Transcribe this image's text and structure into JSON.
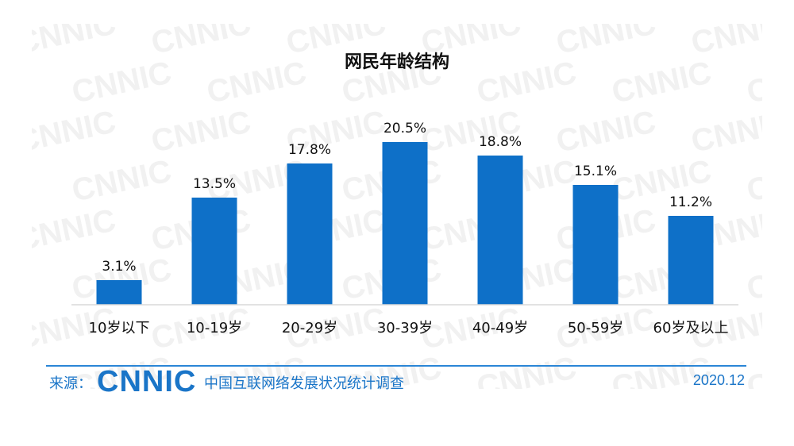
{
  "watermark_text": "CNNIC",
  "chart_data": {
    "type": "bar",
    "title": "网民年龄结构",
    "categories": [
      "10岁以下",
      "10-19岁",
      "20-29岁",
      "30-39岁",
      "40-49岁",
      "50-59岁",
      "60岁及以上"
    ],
    "values": [
      3.1,
      13.5,
      17.8,
      20.5,
      18.8,
      15.1,
      11.2
    ],
    "value_labels": [
      "3.1%",
      "13.5%",
      "17.8%",
      "20.5%",
      "18.8%",
      "15.1%",
      "11.2%"
    ],
    "ylim": [
      0,
      25
    ],
    "grid": false,
    "bar_color": "#0e70c8"
  },
  "footer": {
    "source_label": "来源：",
    "logo_text": "CNNIC",
    "survey_name": "中国互联网络发展状况统计调查",
    "date": "2020.12",
    "accent_color": "#1a75c8"
  }
}
